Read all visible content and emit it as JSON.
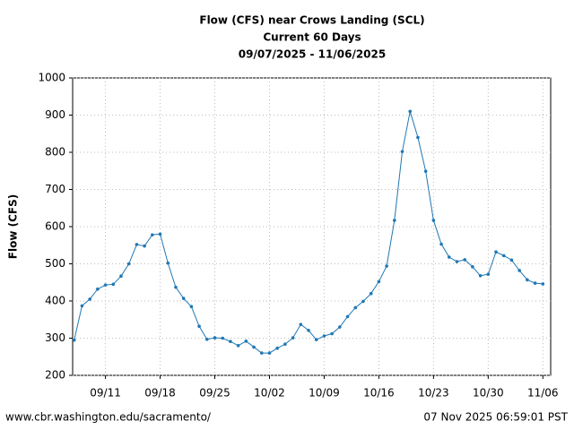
{
  "chart_data": {
    "type": "line",
    "title": "Flow (CFS) near Crows Landing (SCL)",
    "subtitle": "Current 60 Days",
    "date_range": "09/07/2025 - 11/06/2025",
    "y_label": "Flow (CFS)",
    "source": "www.cbr.washington.edu/sacramento/",
    "timestamp": "07 Nov 2025 06:59:01 PST",
    "color": "#1f77b4",
    "grid": true,
    "x": [
      "09/07",
      "09/08",
      "09/09",
      "09/10",
      "09/11",
      "09/12",
      "09/13",
      "09/14",
      "09/15",
      "09/16",
      "09/17",
      "09/18",
      "09/19",
      "09/20",
      "09/21",
      "09/22",
      "09/23",
      "09/24",
      "09/25",
      "09/26",
      "09/27",
      "09/28",
      "09/29",
      "09/30",
      "10/01",
      "10/02",
      "10/03",
      "10/04",
      "10/05",
      "10/06",
      "10/07",
      "10/08",
      "10/09",
      "10/10",
      "10/11",
      "10/12",
      "10/13",
      "10/14",
      "10/15",
      "10/16",
      "10/17",
      "10/18",
      "10/19",
      "10/20",
      "10/21",
      "10/22",
      "10/23",
      "10/24",
      "10/25",
      "10/26",
      "10/27",
      "10/28",
      "10/29",
      "10/30",
      "10/31",
      "11/01",
      "11/02",
      "11/03",
      "11/04",
      "11/05",
      "11/06"
    ],
    "values": [
      295,
      387,
      405,
      432,
      443,
      445,
      467,
      500,
      552,
      548,
      578,
      580,
      502,
      437,
      407,
      385,
      332,
      297,
      301,
      300,
      291,
      280,
      292,
      276,
      260,
      260,
      273,
      284,
      301,
      337,
      321,
      296,
      306,
      312,
      330,
      358,
      382,
      399,
      420,
      452,
      494,
      617,
      802,
      910,
      840,
      749,
      617,
      553,
      518,
      506,
      511,
      492,
      468,
      472,
      532,
      522,
      510,
      482,
      457,
      448,
      446
    ],
    "xlim": [
      "09/07",
      "11/07"
    ],
    "xticks": [
      "09/11",
      "09/18",
      "09/25",
      "10/02",
      "10/09",
      "10/16",
      "10/23",
      "10/30",
      "11/06"
    ],
    "ylim": [
      200,
      1000
    ],
    "yticks": [
      200,
      300,
      400,
      500,
      600,
      700,
      800,
      900,
      1000
    ]
  }
}
